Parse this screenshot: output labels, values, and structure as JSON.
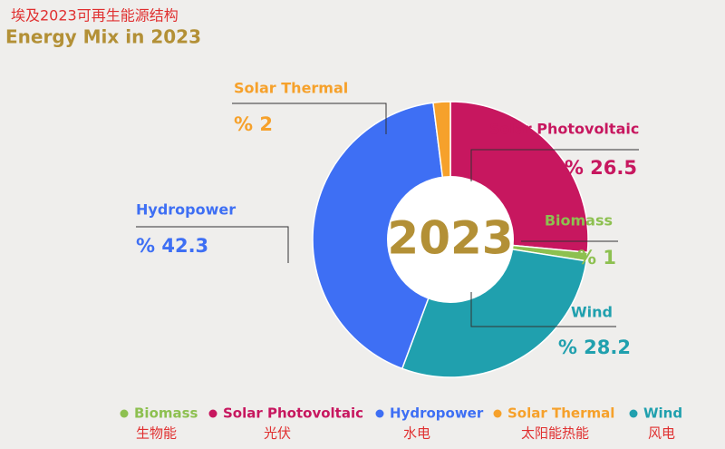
{
  "chart_data": {
    "type": "donut",
    "title_zh": "埃及2023可再生能源结构",
    "title": "Energy Mix in 2023",
    "center_label": "2023",
    "categories": [
      "Solar Photovoltaic",
      "Biomass",
      "Wind",
      "Hydropower",
      "Solar Thermal"
    ],
    "values": [
      26.5,
      1,
      28.2,
      42.3,
      2
    ],
    "value_labels": [
      "% 26.5",
      "% 1",
      "% 28.2",
      "% 42.3",
      "% 2"
    ],
    "colors": [
      "#c7175f",
      "#8dc050",
      "#20a0ae",
      "#3e6ff4",
      "#f6a12b"
    ],
    "legend": [
      {
        "name": "Biomass",
        "name_zh": "生物能"
      },
      {
        "name": "Solar Photovoltaic",
        "name_zh": "光伏"
      },
      {
        "name": "Hydropower",
        "name_zh": "水电"
      },
      {
        "name": "Solar Thermal",
        "name_zh": "太阳能热能"
      },
      {
        "name": "Wind",
        "name_zh": "风电"
      }
    ]
  }
}
